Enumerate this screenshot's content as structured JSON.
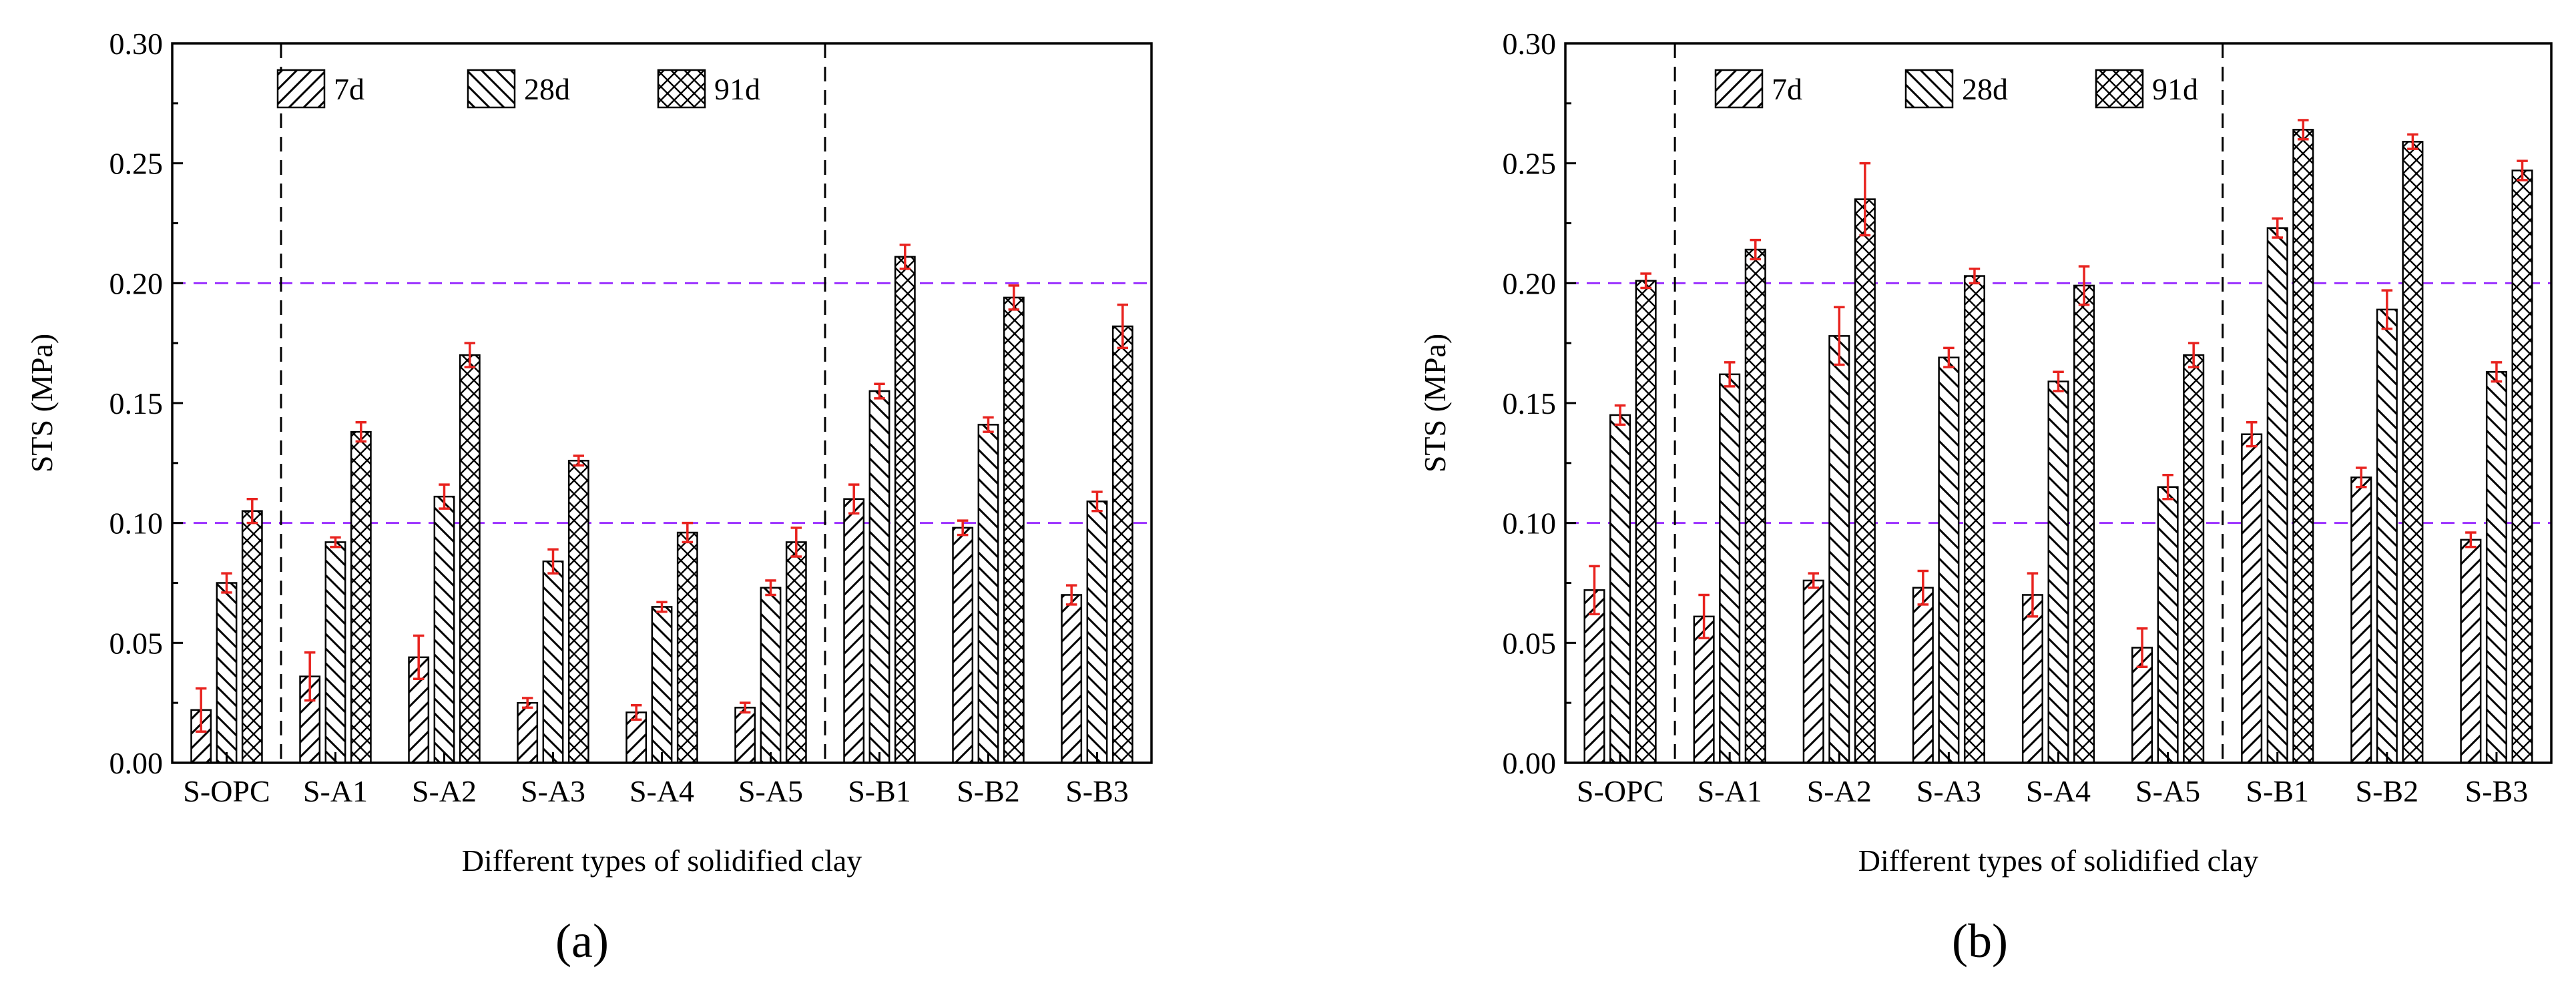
{
  "figure": {
    "panels": [
      "(a)",
      "(b)"
    ]
  },
  "colors": {
    "reference_line": "#9b30ff",
    "error_bar": "#e8231f",
    "axis": "#000000",
    "bar_fill": "#ffffff"
  },
  "chart_data": [
    {
      "type": "bar",
      "panel_label": "a",
      "xlabel": "Different types of solidified clay",
      "ylabel": "STS (MPa)",
      "ylim": [
        0,
        0.3
      ],
      "yticks": [
        "0.00",
        "0.05",
        "0.10",
        "0.15",
        "0.20",
        "0.25",
        "0.30"
      ],
      "categories": [
        "S-OPC",
        "S-A1",
        "S-A2",
        "S-A3",
        "S-A4",
        "S-A5",
        "S-B1",
        "S-B2",
        "S-B3"
      ],
      "series": [
        {
          "name": "7d",
          "pattern": "diag-forward",
          "values": [
            0.022,
            0.036,
            0.044,
            0.025,
            0.021,
            0.023,
            0.11,
            0.098,
            0.07
          ],
          "errors": [
            0.009,
            0.01,
            0.009,
            0.002,
            0.003,
            0.002,
            0.006,
            0.003,
            0.004
          ]
        },
        {
          "name": "28d",
          "pattern": "diag-back",
          "values": [
            0.075,
            0.092,
            0.111,
            0.084,
            0.065,
            0.073,
            0.155,
            0.141,
            0.109
          ],
          "errors": [
            0.004,
            0.002,
            0.005,
            0.005,
            0.002,
            0.003,
            0.003,
            0.003,
            0.004
          ]
        },
        {
          "name": "91d",
          "pattern": "crosshatch",
          "values": [
            0.105,
            0.138,
            0.17,
            0.126,
            0.096,
            0.092,
            0.211,
            0.194,
            0.182
          ],
          "errors": [
            0.005,
            0.004,
            0.005,
            0.002,
            0.004,
            0.006,
            0.005,
            0.005,
            0.009
          ]
        }
      ],
      "reference_lines": [
        0.1,
        0.2
      ],
      "group_separators_after": [
        "S-OPC",
        "S-A5"
      ],
      "legend": "top"
    },
    {
      "type": "bar",
      "panel_label": "b",
      "xlabel": "Different types of solidified clay",
      "ylabel": "STS (MPa)",
      "ylim": [
        0,
        0.3
      ],
      "yticks": [
        "0.00",
        "0.05",
        "0.10",
        "0.15",
        "0.20",
        "0.25",
        "0.30"
      ],
      "categories": [
        "S-OPC",
        "S-A1",
        "S-A2",
        "S-A3",
        "S-A4",
        "S-A5",
        "S-B1",
        "S-B2",
        "S-B3"
      ],
      "series": [
        {
          "name": "7d",
          "pattern": "diag-forward",
          "values": [
            0.072,
            0.061,
            0.076,
            0.073,
            0.07,
            0.048,
            0.137,
            0.119,
            0.093
          ],
          "errors": [
            0.01,
            0.009,
            0.003,
            0.007,
            0.009,
            0.008,
            0.005,
            0.004,
            0.003
          ]
        },
        {
          "name": "28d",
          "pattern": "diag-back",
          "values": [
            0.145,
            0.162,
            0.178,
            0.169,
            0.159,
            0.115,
            0.223,
            0.189,
            0.163
          ],
          "errors": [
            0.004,
            0.005,
            0.012,
            0.004,
            0.004,
            0.005,
            0.004,
            0.008,
            0.004
          ]
        },
        {
          "name": "91d",
          "pattern": "crosshatch",
          "values": [
            0.201,
            0.214,
            0.235,
            0.203,
            0.199,
            0.17,
            0.264,
            0.259,
            0.247
          ],
          "errors": [
            0.003,
            0.004,
            0.015,
            0.003,
            0.008,
            0.005,
            0.004,
            0.003,
            0.004
          ]
        }
      ],
      "reference_lines": [
        0.1,
        0.2
      ],
      "group_separators_after": [
        "S-OPC",
        "S-A5"
      ],
      "legend": "top"
    }
  ]
}
